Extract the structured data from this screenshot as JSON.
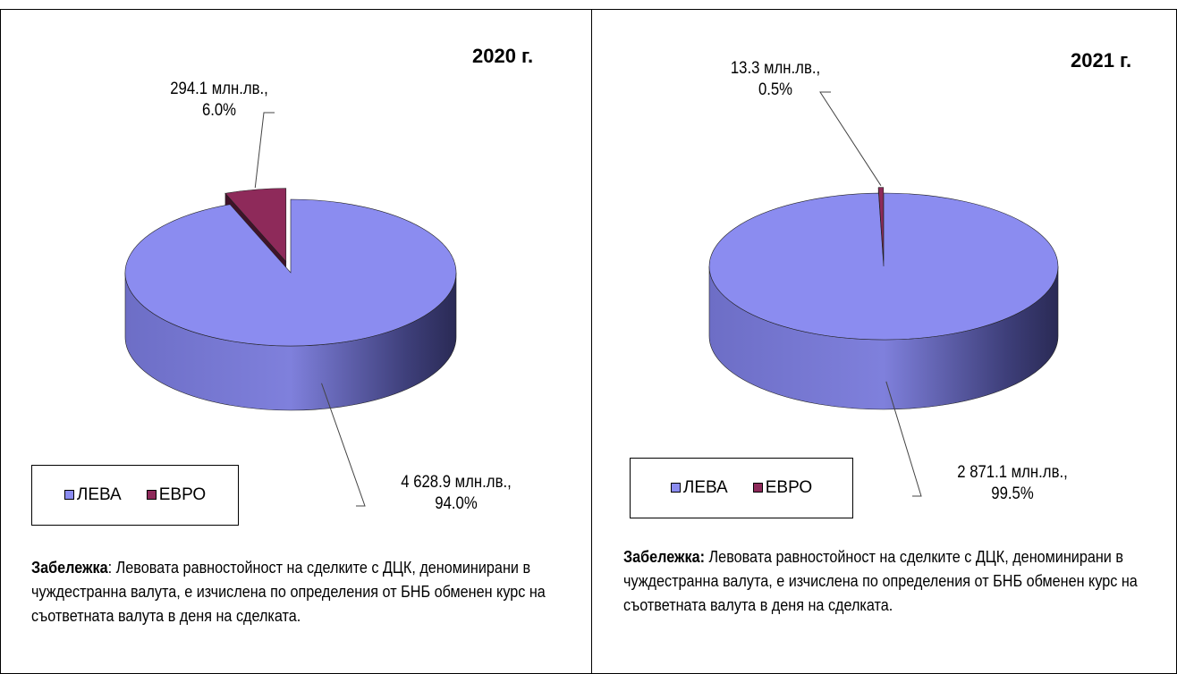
{
  "chart_data": [
    {
      "type": "pie3d",
      "title": "2020 г.",
      "categories": [
        "ЛЕВА",
        "ЕВРО"
      ],
      "colors": [
        "#8b8cf0",
        "#8e2a5a"
      ],
      "values": [
        4628.9,
        294.1
      ],
      "value_labels": [
        "4 628.9 млн.лв.,\n94.0%",
        "294.1 млн.лв.,\n6.0%"
      ],
      "note_bold": "Забележка",
      "note_text": ": Левовата равностойност на сделките с ДЦК, деноминирани в чуждестранна валута, е изчислена по определения от БНБ обменен курс на съответната валута в деня на сделката."
    },
    {
      "type": "pie3d",
      "title": "2021 г.",
      "categories": [
        "ЛЕВА",
        "ЕВРО"
      ],
      "colors": [
        "#8b8cf0",
        "#8e2a5a"
      ],
      "values": [
        2871.1,
        13.3
      ],
      "value_labels": [
        "2 871.1 млн.лв.,\n99.5%",
        "13.3 млн.лв.,\n0.5%"
      ],
      "note_bold": "Забележка:",
      "note_text": " Левовата равностойност на сделките с ДЦК, деноминирани в чуждестранна валута, е изчислена по определения от БНБ обменен курс на съответната валута в деня на сделката."
    }
  ]
}
